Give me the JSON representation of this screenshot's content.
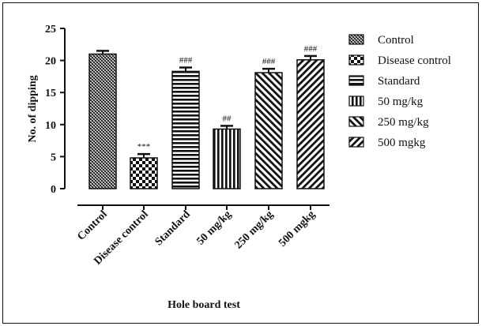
{
  "chart_data": {
    "type": "bar",
    "title": "",
    "xlabel": "Hole board test",
    "ylabel": "No. of dipping",
    "ylim": [
      0,
      25
    ],
    "yticks": [
      0,
      5,
      10,
      15,
      20,
      25
    ],
    "categories": [
      "Control",
      "Disease control",
      "Standard",
      "50 mg/kg",
      "250 mg/kg",
      "500 mgkg"
    ],
    "values": [
      21,
      4.8,
      18.3,
      9.3,
      18.1,
      20.1
    ],
    "errors": [
      0.5,
      0.6,
      0.6,
      0.5,
      0.6,
      0.6
    ],
    "annotations": [
      "",
      "***",
      "###",
      "##",
      "###",
      "###"
    ],
    "patterns": [
      "crosshatch-fine",
      "checker",
      "horizontal-lines",
      "vertical-lines",
      "diagonal-lines",
      "diagonal-lines-back"
    ],
    "legend": {
      "placement": "right",
      "entries": [
        "Control",
        "Disease control",
        "Standard",
        "50 mg/kg",
        "250 mg/kg",
        "500 mgkg"
      ]
    },
    "grid": false
  }
}
